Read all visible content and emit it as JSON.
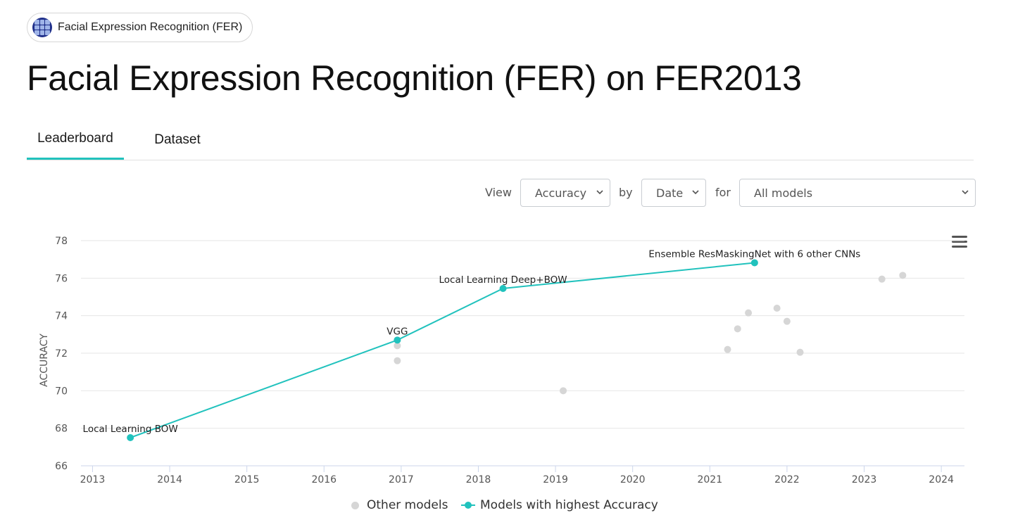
{
  "chip": {
    "label": "Facial Expression Recognition (FER)",
    "icon": "dataset-thumbnail-icon"
  },
  "page_title": "Facial Expression Recognition (FER) on FER2013",
  "tabs": [
    {
      "label": "Leaderboard",
      "active": true
    },
    {
      "label": "Dataset",
      "active": false
    }
  ],
  "controls": {
    "view_word": "View",
    "view_value": "Accuracy",
    "by_word": "by",
    "by_value": "Date",
    "for_word": "for",
    "for_value": "All models"
  },
  "colors": {
    "accent": "#21c2bd",
    "other_models": "#d6d6d6",
    "grid": "#e6e6e6"
  },
  "chart_data": {
    "type": "scatter",
    "xlabel": "",
    "ylabel": "ACCURACY",
    "xlim": [
      2012.85,
      2024.3
    ],
    "ylim": [
      66,
      78
    ],
    "x_ticks": [
      "2013",
      "2014",
      "2015",
      "2016",
      "2017",
      "2018",
      "2019",
      "2020",
      "2021",
      "2022",
      "2023",
      "2024"
    ],
    "y_ticks": [
      66,
      68,
      70,
      72,
      74,
      76,
      78
    ],
    "grid": true,
    "legend_position": "bottom-center",
    "series": [
      {
        "name": "Other models",
        "type": "scatter",
        "color": "#d6d6d6",
        "points": [
          {
            "x": 2016.95,
            "y": 72.4
          },
          {
            "x": 2016.95,
            "y": 71.6
          },
          {
            "x": 2019.1,
            "y": 70.0
          },
          {
            "x": 2021.23,
            "y": 72.2
          },
          {
            "x": 2021.36,
            "y": 73.3
          },
          {
            "x": 2021.5,
            "y": 74.15
          },
          {
            "x": 2021.87,
            "y": 74.4
          },
          {
            "x": 2022.0,
            "y": 73.7
          },
          {
            "x": 2022.17,
            "y": 72.05
          },
          {
            "x": 2023.23,
            "y": 75.95
          },
          {
            "x": 2023.5,
            "y": 76.15
          }
        ]
      },
      {
        "name": "Models with highest Accuracy",
        "type": "line",
        "color": "#21c2bd",
        "points": [
          {
            "x": 2013.49,
            "y": 67.5,
            "label": "Local Learning BOW"
          },
          {
            "x": 2016.95,
            "y": 72.7,
            "label": "VGG"
          },
          {
            "x": 2018.32,
            "y": 75.45,
            "label": "Local Learning Deep+BOW"
          },
          {
            "x": 2021.58,
            "y": 76.82,
            "label": "Ensemble ResMaskingNet with 6 other CNNs"
          }
        ]
      }
    ]
  },
  "legend": [
    {
      "label": "Other models"
    },
    {
      "label": "Models with highest Accuracy"
    }
  ]
}
